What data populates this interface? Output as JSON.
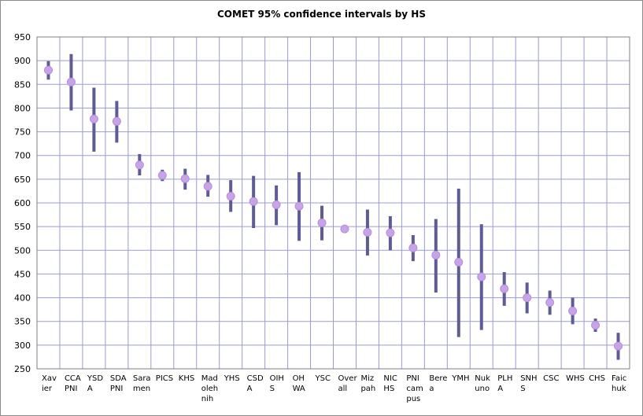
{
  "chart_data": {
    "type": "error-bar",
    "title": "COMET 95% confidence intervals by HS",
    "xlabel": "",
    "ylabel": "",
    "ylim": [
      250,
      950
    ],
    "yticks": [
      250,
      300,
      350,
      400,
      450,
      500,
      550,
      600,
      650,
      700,
      750,
      800,
      850,
      900,
      950
    ],
    "grid": true,
    "categories": [
      [
        "Xav",
        "ier"
      ],
      [
        "CCA",
        "PNI"
      ],
      [
        "YSD",
        "A"
      ],
      [
        "SDA",
        "PNI"
      ],
      [
        "Sara",
        "men"
      ],
      [
        "PICS"
      ],
      [
        "KHS"
      ],
      [
        "Mad",
        "oleh",
        "nih"
      ],
      [
        "YHS"
      ],
      [
        "CSD",
        "A"
      ],
      [
        "OIH",
        "S"
      ],
      [
        "OH",
        "WA"
      ],
      [
        "YSC"
      ],
      [
        "Over",
        "all"
      ],
      [
        "Miz",
        "pah"
      ],
      [
        "NIC",
        "HS"
      ],
      [
        "PNI",
        "cam",
        "pus"
      ],
      [
        "Bere",
        "a"
      ],
      [
        "YMH"
      ],
      [
        "Nuk",
        "uno"
      ],
      [
        "PLH",
        "A"
      ],
      [
        "SNH",
        "S"
      ],
      [
        "CSC"
      ],
      [
        "WHS"
      ],
      [
        "CHS"
      ],
      [
        "Faic",
        "huk"
      ]
    ],
    "series": [
      {
        "mean": [
          880,
          855,
          777,
          772,
          680,
          658,
          651,
          635,
          614,
          603,
          596,
          593,
          558,
          545,
          538,
          537,
          505,
          490,
          475,
          444,
          419,
          400,
          390,
          372,
          342,
          298
        ],
        "lower": [
          860,
          795,
          708,
          727,
          658,
          646,
          628,
          613,
          581,
          547,
          553,
          520,
          521,
          539,
          489,
          500,
          477,
          411,
          317,
          332,
          383,
          367,
          364,
          344,
          328,
          269
        ],
        "upper": [
          899,
          914,
          843,
          815,
          703,
          670,
          672,
          659,
          648,
          657,
          637,
          665,
          594,
          553,
          586,
          572,
          532,
          566,
          630,
          555,
          454,
          432,
          415,
          400,
          356,
          326
        ]
      }
    ],
    "colors": {
      "plot_bg": "#ffffff",
      "grid": "#9b9bd3",
      "interval_bar": "#5f5c93",
      "mean_marker": "#c9a3e8"
    }
  }
}
